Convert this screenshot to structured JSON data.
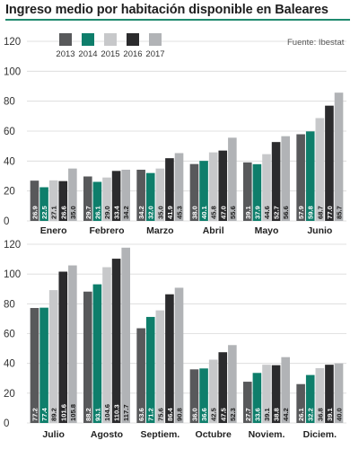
{
  "header": {
    "title": "Ingreso medio por habitación disponible en Baleares",
    "source": "Fuente: Ibestat"
  },
  "colors": {
    "accent": "#1e8a6e",
    "series": [
      "#58595b",
      "#0e7e6b",
      "#c7c8ca",
      "#2b2b2d",
      "#b1b3b6"
    ],
    "grid": "#d9d9d9"
  },
  "chart_data": [
    {
      "type": "bar",
      "ylim": [
        0,
        120
      ],
      "yticks": [
        0,
        20,
        40,
        60,
        80,
        100,
        120
      ],
      "categories": [
        "Enero",
        "Febrero",
        "Marzo",
        "Abril",
        "Mayo",
        "Junio"
      ],
      "series": [
        {
          "name": "2013",
          "values": [
            26.9,
            29.7,
            34.2,
            38.0,
            39.1,
            57.9
          ]
        },
        {
          "name": "2014",
          "values": [
            22.5,
            26.1,
            32.0,
            40.1,
            37.9,
            59.8
          ]
        },
        {
          "name": "2015",
          "values": [
            27.1,
            29.0,
            35.0,
            45.8,
            44.6,
            68.7
          ]
        },
        {
          "name": "2016",
          "values": [
            26.6,
            33.4,
            41.9,
            47.0,
            52.7,
            77.0
          ]
        },
        {
          "name": "2017",
          "values": [
            35.0,
            34.2,
            45.3,
            55.6,
            56.6,
            85.7
          ]
        }
      ]
    },
    {
      "type": "bar",
      "ylim": [
        0,
        120
      ],
      "yticks": [
        0,
        20,
        40,
        60,
        80,
        100,
        120
      ],
      "categories": [
        "Julio",
        "Agosto",
        "Septiem.",
        "Octubre",
        "Noviem.",
        "Diciem."
      ],
      "series": [
        {
          "name": "2013",
          "values": [
            77.2,
            88.2,
            63.6,
            36.0,
            27.7,
            26.1
          ]
        },
        {
          "name": "2014",
          "values": [
            77.4,
            93.1,
            71.2,
            36.6,
            33.6,
            32.2
          ]
        },
        {
          "name": "2015",
          "values": [
            89.2,
            104.6,
            75.6,
            42.5,
            39.1,
            36.8
          ]
        },
        {
          "name": "2016",
          "values": [
            101.6,
            110.3,
            86.4,
            47.5,
            38.8,
            39.1
          ]
        },
        {
          "name": "2017",
          "values": [
            105.8,
            117.7,
            90.8,
            52.3,
            44.2,
            40.0
          ]
        }
      ]
    }
  ]
}
